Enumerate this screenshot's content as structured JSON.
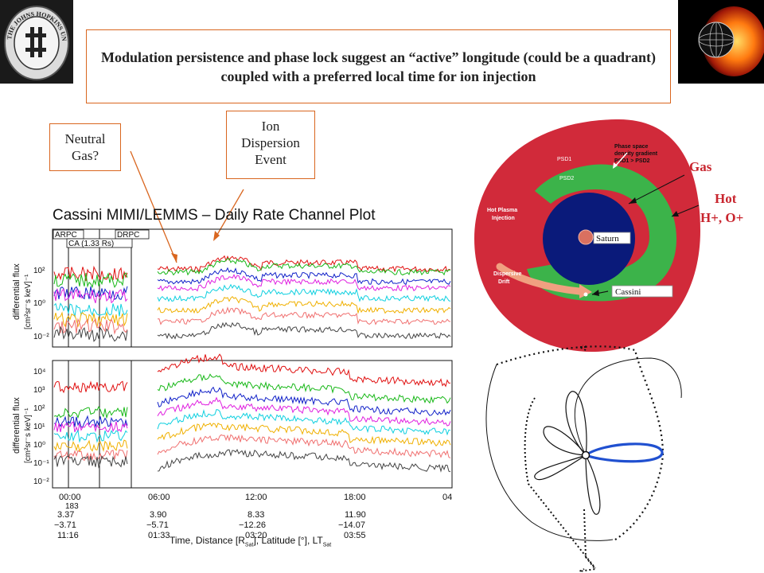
{
  "title": "Modulation persistence and phase lock suggest an “active” longitude (could be a quadrant) coupled with a preferred local time for ion injection",
  "callouts": {
    "neutral_line1": "Neutral",
    "neutral_line2": "Gas?",
    "ion_line1": "Ion",
    "ion_line2": "Dispersion",
    "ion_line3": "Event"
  },
  "logo_left": {
    "text": "THE JOHNS HOPKINS UNIVERSITY"
  },
  "plot": {
    "title": "Cassini MIMI/LEMMS – Daily Rate Channel Plot",
    "tag_arpc": "ARPC",
    "tag_drpc": "DRPC",
    "tag_ca": "CA (1.33 Rs)",
    "ylabel_top": "differential flux",
    "yunits_top": "[cm²sr⁻s keV]⁻¹",
    "ylabel_bottom": "differential flux",
    "yunits_bottom": "[cm²sr⁻s keV]⁻¹",
    "top_yticks": [
      "10²",
      "10⁰",
      "10⁻²"
    ],
    "bottom_yticks": [
      "10⁴",
      "10³",
      "10²",
      "10¹",
      "10⁰",
      "10⁻¹",
      "10⁻²"
    ],
    "xticks": [
      "00:00",
      "06:00",
      "12:00",
      "18:00"
    ],
    "xtick_cut": "04",
    "doy": "183",
    "rows": [
      [
        "3.37",
        "3.90",
        "8.33",
        "11.90"
      ],
      [
        "−3.71",
        "−5.71",
        "−12.26",
        "−14.07"
      ],
      [
        "11:16",
        "01:33",
        "03:20",
        "03:55"
      ]
    ],
    "xlabel": "Time, Distance [R",
    "xlabel_sub": "Sat",
    "xlabel_end": "], Latitude [°], LT",
    "xlabel_sub2": "Sat",
    "series_colors": [
      "#e01010",
      "#18b818",
      "#1020c8",
      "#e020e0",
      "#10d0e0",
      "#f0b000",
      "#f07070",
      "#444444"
    ]
  },
  "diagram": {
    "gradient_note_1": "Phase space",
    "gradient_note_2": "density gradient",
    "gradient_note_3": "PSD1 > PSD2",
    "psd1": "PSD1",
    "psd2": "PSD2",
    "injection_1": "Hot Plasma",
    "injection_2": "Injection",
    "drift_1": "Dispersive",
    "drift_2": "Drift",
    "saturn": "Saturn",
    "cassini": "Cassini",
    "gas": "Gas",
    "hot_1": "Hot",
    "hot_2": "H+, O+",
    "colors": {
      "outer": "#d12a3a",
      "ring": "#3cb34a",
      "core": "#0a1a7a",
      "planet": "#d97060"
    }
  }
}
